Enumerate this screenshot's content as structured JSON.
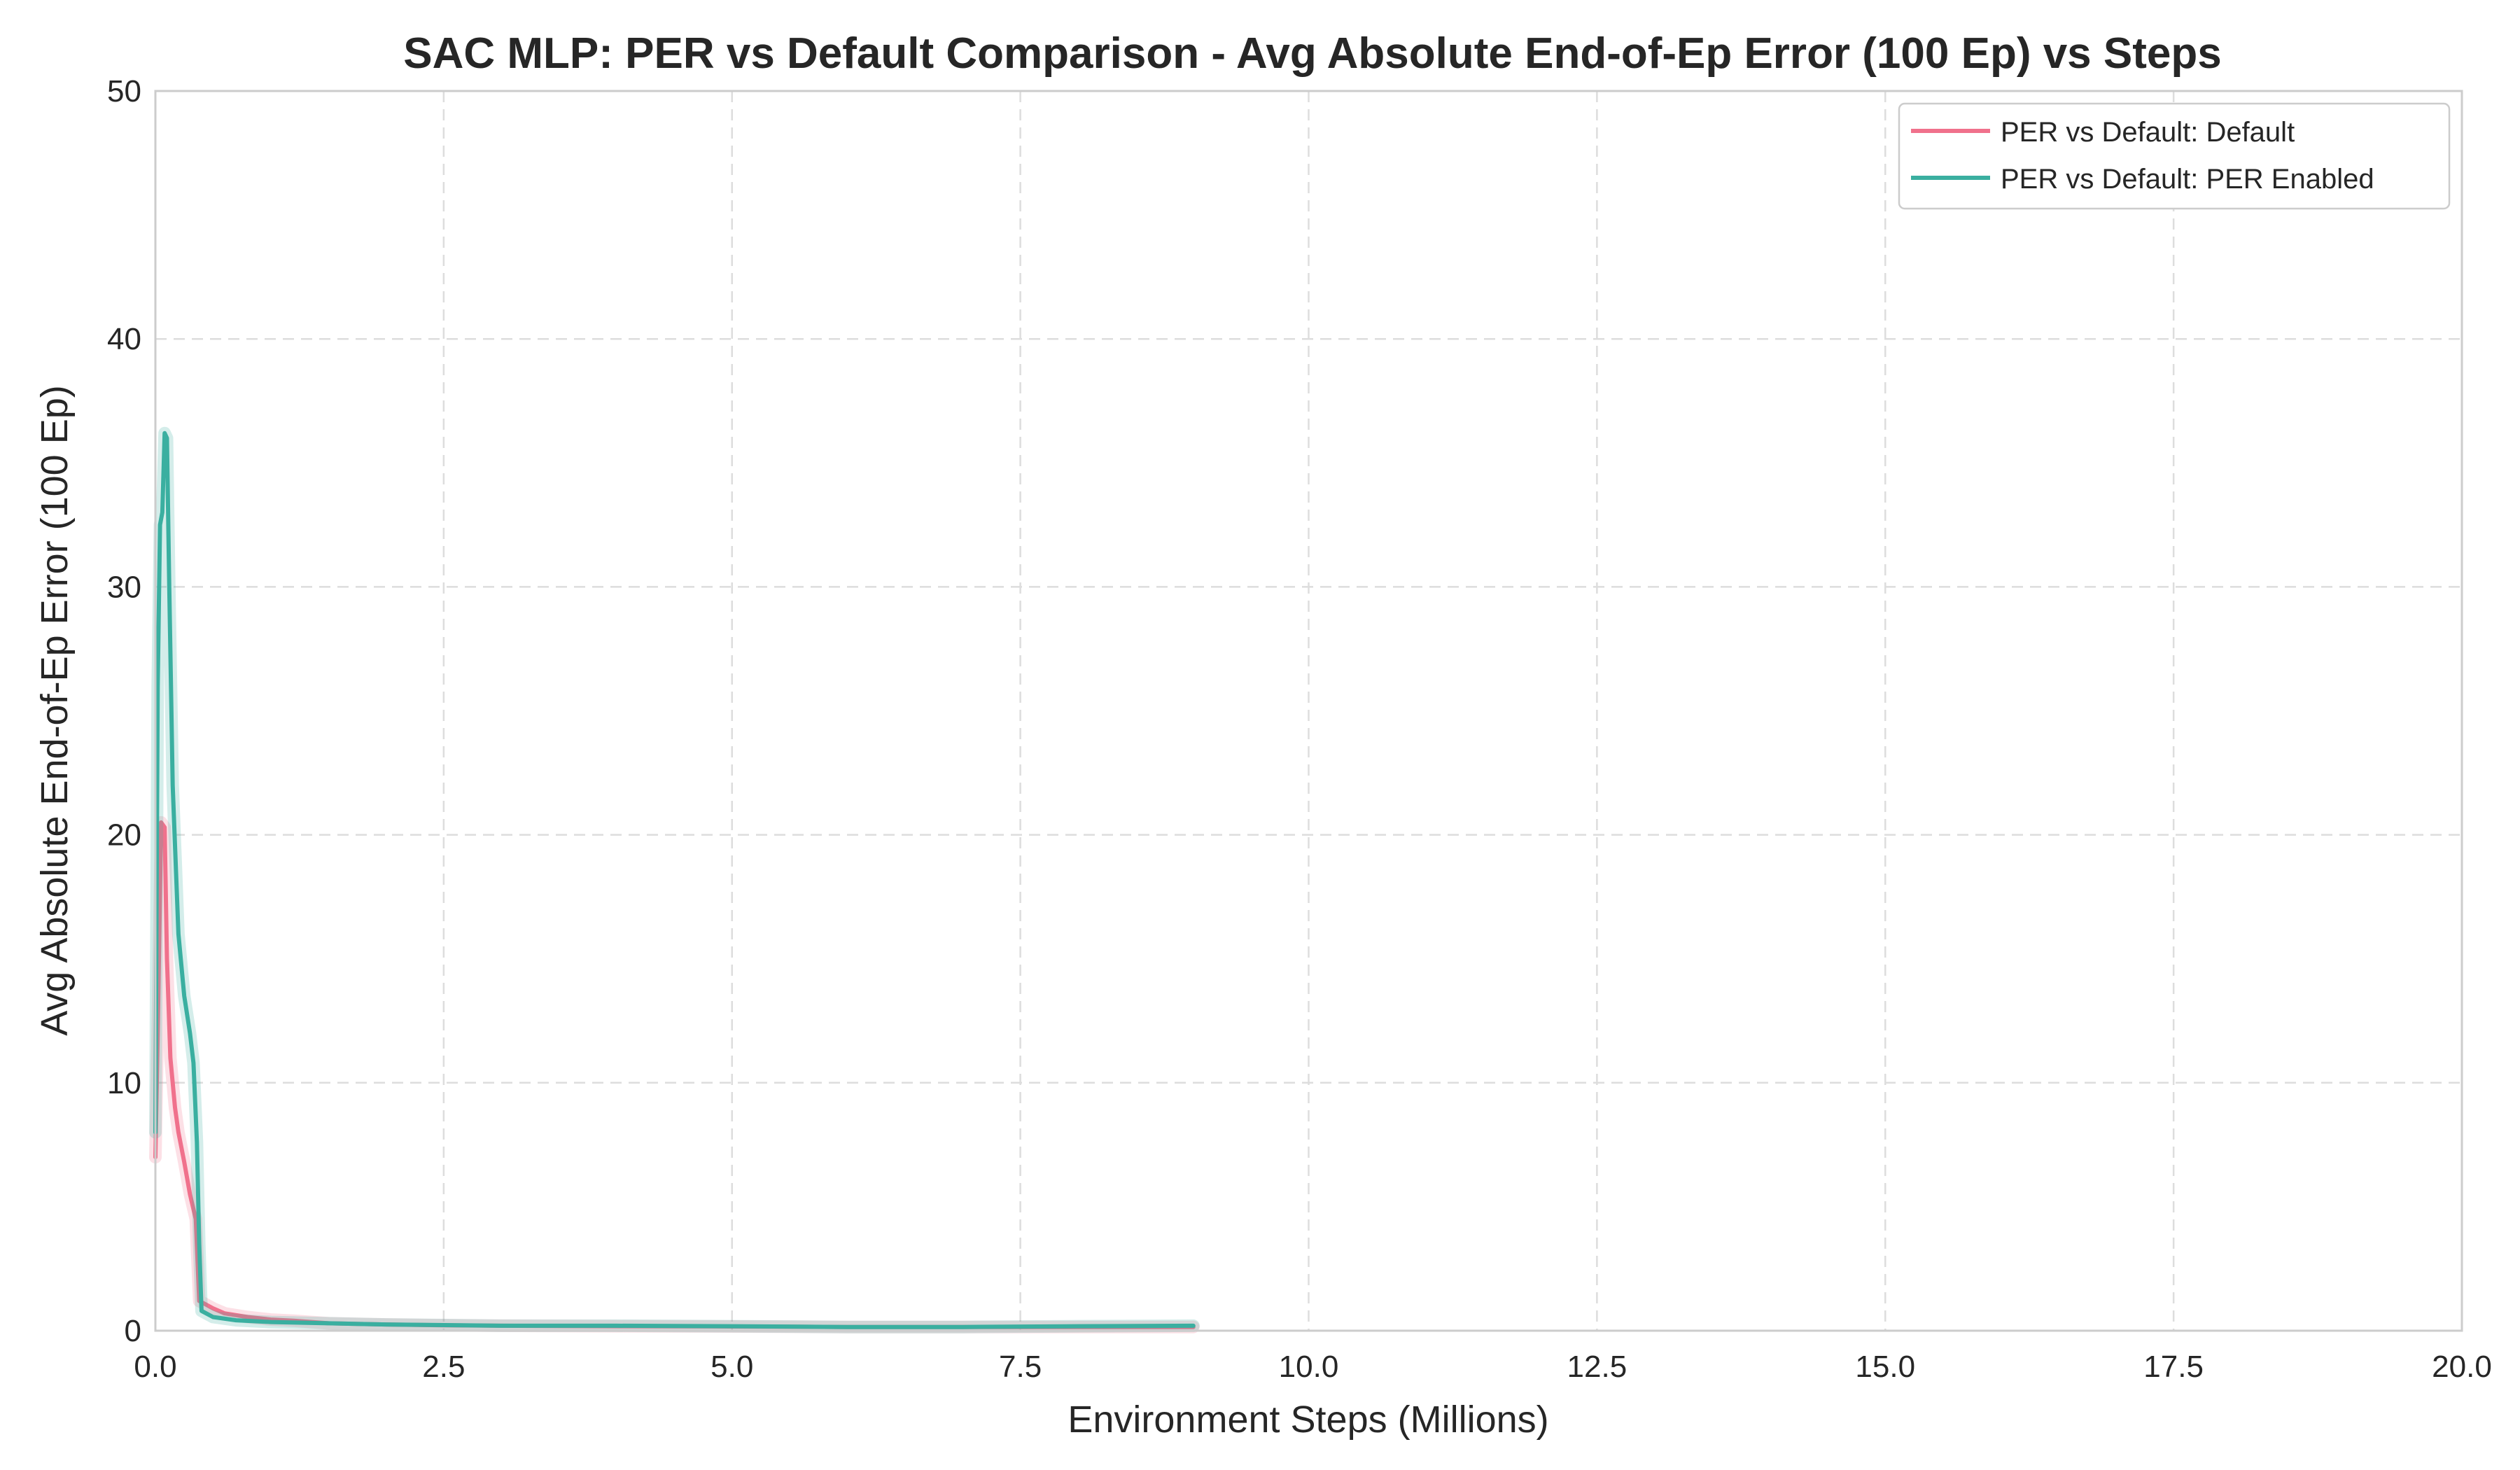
{
  "chart_data": {
    "type": "line",
    "title": "SAC MLP: PER vs Default Comparison - Avg Absolute End-of-Ep Error (100 Ep) vs Steps",
    "xlabel": "Environment Steps (Millions)",
    "ylabel": "Avg Absolute End-of-Ep Error (100 Ep)",
    "xlim": [
      0,
      20
    ],
    "ylim": [
      0,
      50
    ],
    "x_ticks": [
      0.0,
      2.5,
      5.0,
      7.5,
      10.0,
      12.5,
      15.0,
      17.5,
      20.0
    ],
    "x_tick_labels": [
      "0.0",
      "2.5",
      "5.0",
      "7.5",
      "10.0",
      "12.5",
      "15.0",
      "17.5",
      "20.0"
    ],
    "y_ticks": [
      0,
      10,
      20,
      30,
      40,
      50
    ],
    "y_tick_labels": [
      "0",
      "10",
      "20",
      "30",
      "40",
      "50"
    ],
    "grid": true,
    "legend_position": "top-right",
    "colors": {
      "default": "#f0718c",
      "per": "#3aafa0"
    },
    "series": [
      {
        "name": "PER vs Default: Default",
        "color": "#f0718c",
        "x": [
          0.0,
          0.02,
          0.05,
          0.08,
          0.1,
          0.13,
          0.17,
          0.2,
          0.25,
          0.3,
          0.35,
          0.38,
          0.42,
          0.5,
          0.6,
          0.8,
          1.0,
          1.2,
          1.5,
          2.0,
          2.5,
          3.0,
          4.0,
          5.0,
          6.0,
          7.0,
          8.0,
          9.0
        ],
        "y": [
          7.0,
          12.0,
          20.5,
          20.3,
          15.0,
          11.0,
          9.0,
          8.0,
          6.8,
          5.5,
          4.5,
          1.2,
          1.1,
          0.9,
          0.7,
          0.55,
          0.45,
          0.4,
          0.3,
          0.25,
          0.22,
          0.2,
          0.18,
          0.17,
          0.15,
          0.15,
          0.15,
          0.15
        ]
      },
      {
        "name": "PER vs Default: PER Enabled",
        "color": "#3aafa0",
        "x": [
          0.0,
          0.02,
          0.04,
          0.06,
          0.08,
          0.1,
          0.12,
          0.15,
          0.2,
          0.25,
          0.3,
          0.33,
          0.36,
          0.38,
          0.4,
          0.5,
          0.7,
          1.0,
          1.5,
          2.0,
          3.0,
          4.0,
          5.0,
          6.0,
          7.0,
          8.0,
          9.0
        ],
        "y": [
          8.0,
          26.0,
          32.5,
          33.0,
          36.2,
          36.0,
          30.0,
          22.0,
          16.0,
          13.5,
          12.0,
          10.8,
          7.6,
          3.5,
          0.8,
          0.55,
          0.42,
          0.35,
          0.3,
          0.25,
          0.2,
          0.2,
          0.18,
          0.15,
          0.15,
          0.18,
          0.2
        ]
      }
    ]
  }
}
